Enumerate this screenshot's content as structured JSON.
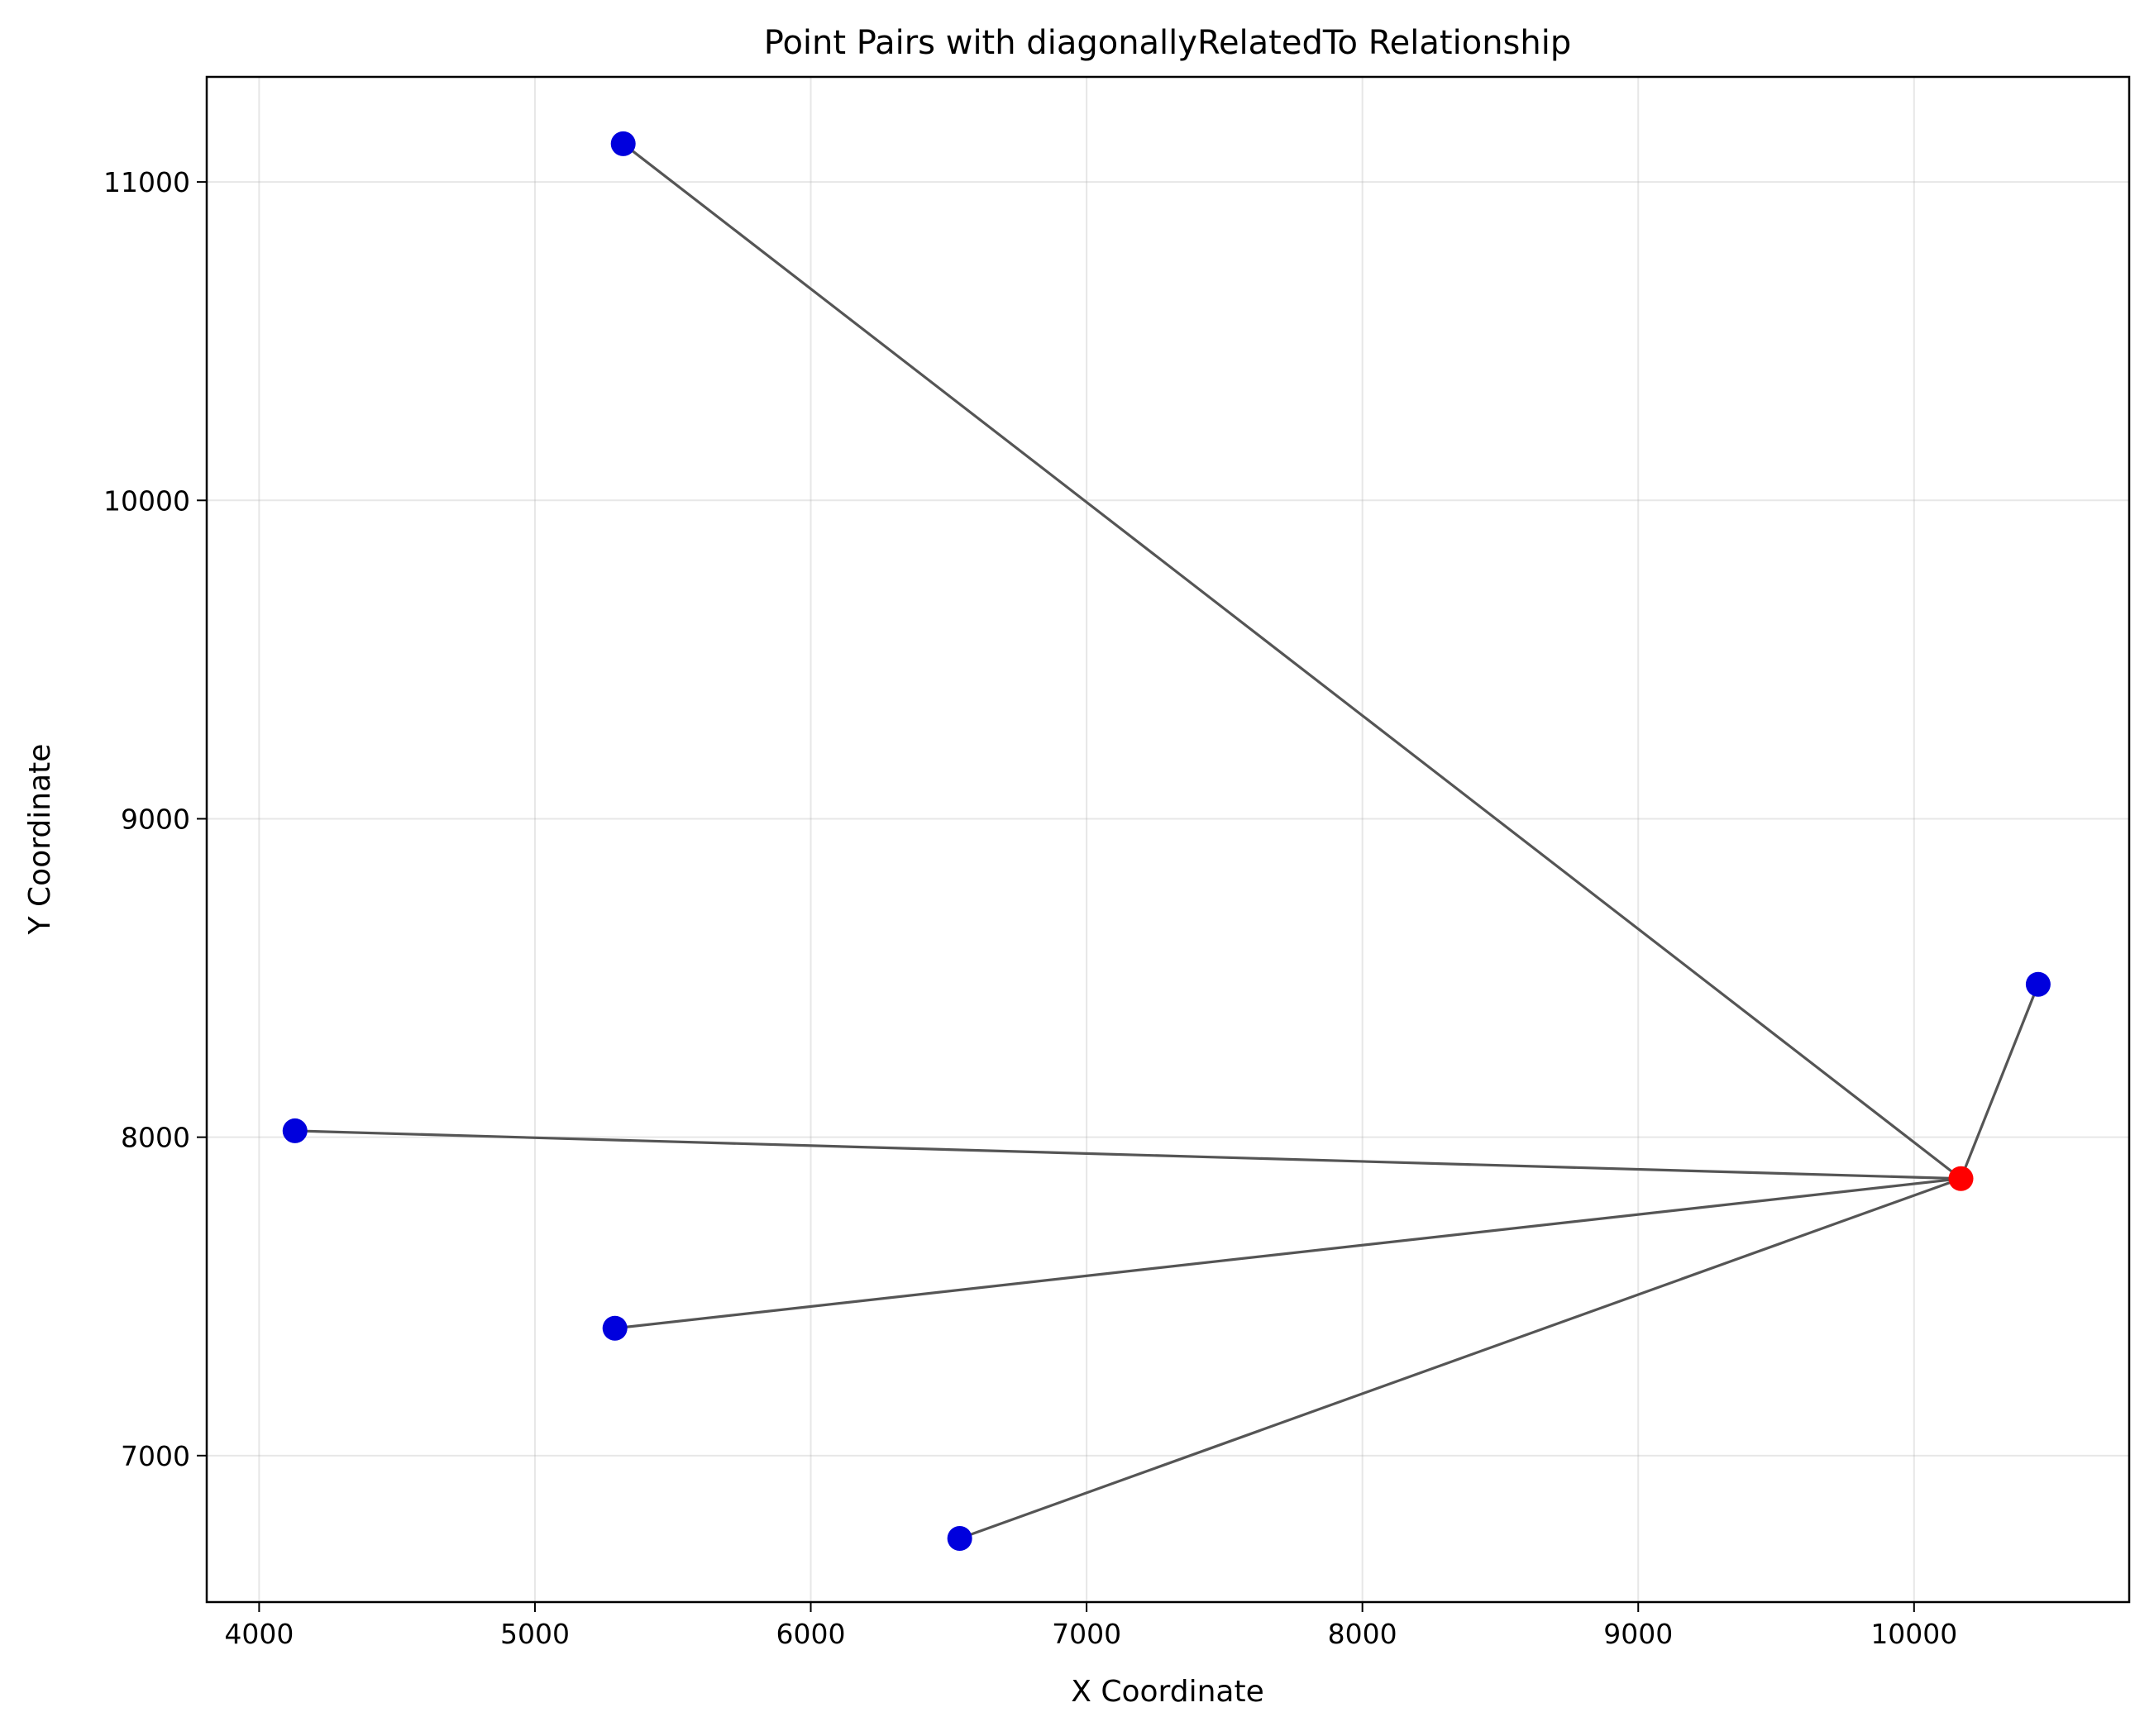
{
  "chart_data": {
    "type": "scatter",
    "title": "Point Pairs with diagonallyRelatedTo Relationship",
    "xlabel": "X Coordinate",
    "ylabel": "Y Coordinate",
    "xlim": [
      3810,
      10780
    ],
    "ylim": [
      6540,
      11330
    ],
    "xticks": [
      4000,
      5000,
      6000,
      7000,
      8000,
      9000,
      10000
    ],
    "yticks": [
      7000,
      8000,
      9000,
      10000,
      11000
    ],
    "grid": true,
    "colors": {
      "point": "#0000dd",
      "center": "#ff0000",
      "line": "#555555"
    },
    "center": {
      "x": 10170,
      "y": 7870
    },
    "points": [
      {
        "x": 5320,
        "y": 11120
      },
      {
        "x": 10450,
        "y": 8480
      },
      {
        "x": 4130,
        "y": 8020
      },
      {
        "x": 5290,
        "y": 7400
      },
      {
        "x": 6540,
        "y": 6740
      }
    ],
    "pairs": [
      {
        "from": {
          "x": 5320,
          "y": 11120
        },
        "to": {
          "x": 10170,
          "y": 7870
        }
      },
      {
        "from": {
          "x": 10450,
          "y": 8480
        },
        "to": {
          "x": 10170,
          "y": 7870
        }
      },
      {
        "from": {
          "x": 4130,
          "y": 8020
        },
        "to": {
          "x": 10170,
          "y": 7870
        }
      },
      {
        "from": {
          "x": 5290,
          "y": 7400
        },
        "to": {
          "x": 10170,
          "y": 7870
        }
      },
      {
        "from": {
          "x": 6540,
          "y": 6740
        },
        "to": {
          "x": 10170,
          "y": 7870
        }
      }
    ]
  }
}
